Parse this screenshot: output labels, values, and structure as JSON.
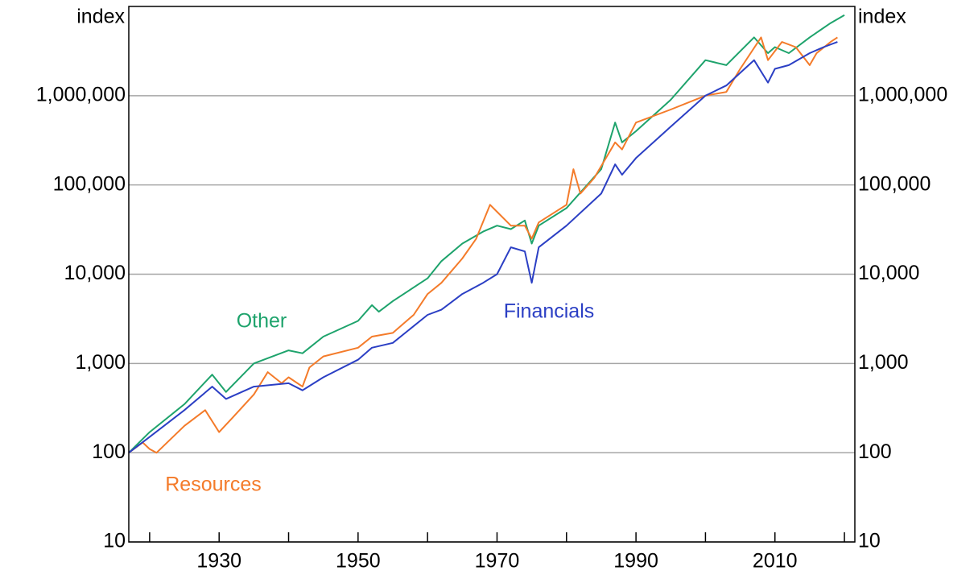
{
  "chart_data": {
    "type": "line",
    "ylog": true,
    "grid": true,
    "xlim": [
      1917,
      2021.5
    ],
    "xticks": [
      1930,
      1950,
      1970,
      1990,
      2010
    ],
    "xminorticks": [
      1920,
      1940,
      1960,
      1980,
      2000,
      2020
    ],
    "ylim": [
      10,
      10000000
    ],
    "yticks": [
      10,
      100,
      {
        "value": 1000,
        "label": "1,000"
      },
      {
        "value": 10000,
        "label": "10,000"
      },
      {
        "value": 100000,
        "label": "100,000"
      },
      {
        "value": 1000000,
        "label": "1,000,000"
      }
    ],
    "y_label": "index",
    "y2_label": "index",
    "series": [
      {
        "name": "Other",
        "color": "#1ea36c",
        "x": [
          1917,
          1920,
          1925,
          1929,
          1931,
          1935,
          1940,
          1942,
          1945,
          1950,
          1952,
          1953,
          1955,
          1960,
          1962,
          1965,
          1968,
          1970,
          1972,
          1974,
          1975,
          1976,
          1980,
          1985,
          1987,
          1988,
          1990,
          1995,
          2000,
          2003,
          2007,
          2009,
          2010,
          2012,
          2015,
          2018,
          2020
        ],
        "values": [
          100,
          170,
          350,
          750,
          480,
          1000,
          1400,
          1300,
          2000,
          3000,
          4500,
          3800,
          5000,
          9000,
          14000,
          22000,
          30000,
          35000,
          32000,
          40000,
          22000,
          35000,
          55000,
          150000,
          500000,
          300000,
          400000,
          900000,
          2500000,
          2200000,
          4500000,
          3000000,
          3500000,
          3000000,
          4500000,
          6500000,
          8000000
        ]
      },
      {
        "name": "Resources",
        "color": "#f47b2a",
        "x": [
          1917,
          1919,
          1920,
          1921,
          1925,
          1928,
          1930,
          1932,
          1935,
          1937,
          1939,
          1940,
          1942,
          1943,
          1945,
          1950,
          1952,
          1955,
          1958,
          1960,
          1962,
          1965,
          1967,
          1969,
          1970,
          1972,
          1974,
          1975,
          1976,
          1980,
          1981,
          1982,
          1984,
          1987,
          1988,
          1990,
          1995,
          2000,
          2003,
          2005,
          2008,
          2009,
          2011,
          2013,
          2015,
          2016,
          2018,
          2019
        ],
        "values": [
          100,
          130,
          110,
          100,
          200,
          300,
          170,
          250,
          450,
          800,
          600,
          700,
          550,
          900,
          1200,
          1500,
          2000,
          2200,
          3500,
          6000,
          8000,
          15000,
          25000,
          60000,
          50000,
          35000,
          35000,
          25000,
          38000,
          60000,
          150000,
          80000,
          120000,
          300000,
          250000,
          500000,
          700000,
          1000000,
          1100000,
          2000000,
          4500000,
          2500000,
          4000000,
          3500000,
          2200000,
          3000000,
          4000000,
          4500000
        ]
      },
      {
        "name": "Financials",
        "color": "#2b3fc4",
        "x": [
          1917,
          1920,
          1925,
          1929,
          1931,
          1935,
          1940,
          1942,
          1945,
          1950,
          1952,
          1955,
          1960,
          1962,
          1965,
          1968,
          1970,
          1972,
          1974,
          1975,
          1976,
          1980,
          1985,
          1987,
          1988,
          1990,
          1995,
          2000,
          2003,
          2007,
          2009,
          2010,
          2012,
          2015,
          2017,
          2019
        ],
        "values": [
          100,
          150,
          300,
          550,
          400,
          550,
          600,
          500,
          700,
          1100,
          1500,
          1700,
          3500,
          4000,
          6000,
          8000,
          10000,
          20000,
          18000,
          8000,
          20000,
          35000,
          80000,
          170000,
          130000,
          200000,
          450000,
          1000000,
          1300000,
          2500000,
          1400000,
          2000000,
          2200000,
          3000000,
          3500000,
          4000000
        ]
      }
    ]
  }
}
